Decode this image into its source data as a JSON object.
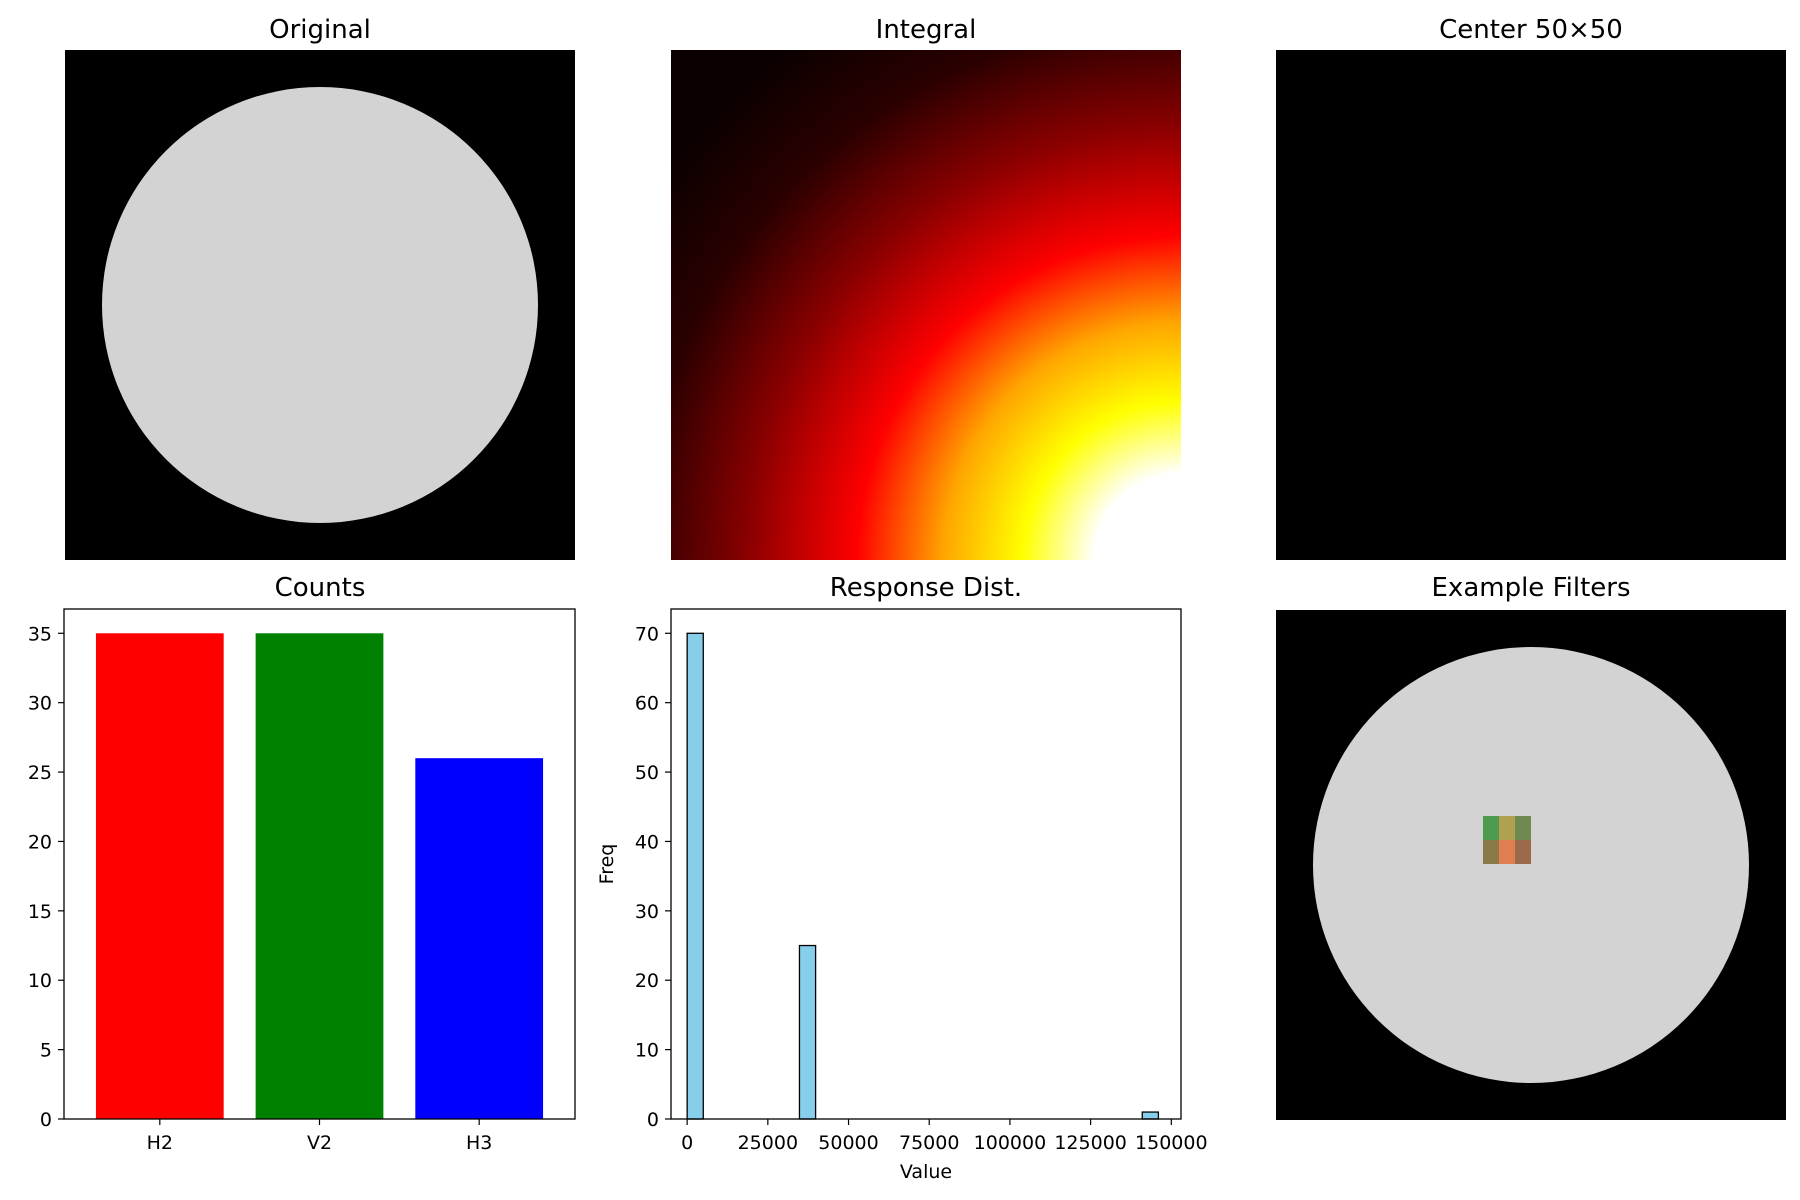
{
  "panels": {
    "original": {
      "title": "Original"
    },
    "integral": {
      "title": "Integral"
    },
    "center": {
      "title": "Center 50×50"
    },
    "counts": {
      "title": "Counts"
    },
    "response": {
      "title": "Response Dist."
    },
    "filters": {
      "title": "Example Filters"
    }
  },
  "colors": {
    "background": "#000000",
    "circle": "#d3d3d3",
    "hist_bar": "#87ceeb",
    "hist_edge": "#000000"
  },
  "chart_data": [
    {
      "type": "image",
      "title": "Original",
      "description_of_content": "light gray disk on black background"
    },
    {
      "type": "heatmap",
      "title": "Integral",
      "colormap": "hot"
    },
    {
      "type": "image",
      "title": "Center 50×50",
      "description_of_content": "uniform black"
    },
    {
      "type": "bar",
      "title": "Counts",
      "categories": [
        "H2",
        "V2",
        "H3"
      ],
      "values": [
        35,
        35,
        26
      ],
      "colors": [
        "#ff0000",
        "#008000",
        "#0000ff"
      ],
      "ylim": [
        0,
        36.75
      ],
      "yticks": [
        0,
        5,
        10,
        15,
        20,
        25,
        30,
        35
      ],
      "xlabel": "",
      "ylabel": ""
    },
    {
      "type": "bar",
      "title": "Response Dist.",
      "xlabel": "Value",
      "ylabel": "Freq",
      "bins": [
        {
          "x0": 0,
          "x1": 5000,
          "count": 70
        },
        {
          "x0": 34800,
          "x1": 39800,
          "count": 25
        },
        {
          "x0": 141000,
          "x1": 146000,
          "count": 1
        }
      ],
      "xlim": [
        -5000,
        153000
      ],
      "ylim": [
        0,
        73.5
      ],
      "xticks": [
        0,
        25000,
        50000,
        75000,
        100000,
        125000,
        150000
      ],
      "yticks": [
        0,
        10,
        20,
        30,
        40,
        50,
        60,
        70
      ]
    },
    {
      "type": "image",
      "title": "Example Filters",
      "description_of_content": "gray disk with small colored filter overlay at center"
    }
  ]
}
